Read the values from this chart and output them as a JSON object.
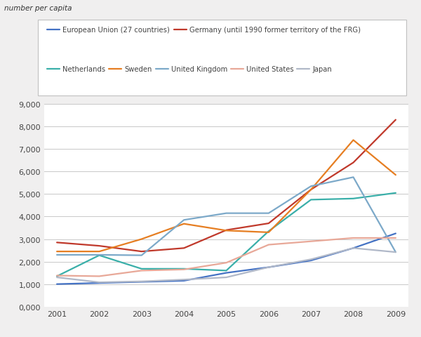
{
  "years": [
    2001,
    2002,
    2003,
    2004,
    2005,
    2006,
    2007,
    2008,
    2009
  ],
  "series": [
    {
      "name": "European Union (27 countries)",
      "values": [
        1000,
        1050,
        1100,
        1150,
        1500,
        1750,
        2050,
        2600,
        3250
      ],
      "color": "#4472C4"
    },
    {
      "name": "Germany (until 1990 former territory of the FRG)",
      "values": [
        2850,
        2700,
        2450,
        2600,
        3400,
        3700,
        5200,
        6400,
        8300
      ],
      "color": "#C0392B"
    },
    {
      "name": "Netherlands",
      "values": [
        1350,
        2280,
        1680,
        1680,
        1600,
        3350,
        4750,
        4800,
        5050
      ],
      "color": "#3AAFA9"
    },
    {
      "name": "Sweden",
      "values": [
        2450,
        2450,
        3000,
        3680,
        3380,
        3300,
        5200,
        7400,
        5850
      ],
      "color": "#E67E22"
    },
    {
      "name": "United Kingdom",
      "values": [
        2300,
        2300,
        2280,
        3850,
        4150,
        4150,
        5350,
        5750,
        2420
      ],
      "color": "#7CA9C9"
    },
    {
      "name": "United States",
      "values": [
        1380,
        1350,
        1600,
        1650,
        1950,
        2750,
        2900,
        3050,
        3050
      ],
      "color": "#E8A898"
    },
    {
      "name": "Japan",
      "values": [
        1300,
        1080,
        1120,
        1200,
        1300,
        1750,
        2100,
        2600,
        2420
      ],
      "color": "#B0B8C8"
    }
  ],
  "ylim": [
    0,
    9000
  ],
  "yticks": [
    0,
    1000,
    2000,
    3000,
    4000,
    5000,
    6000,
    7000,
    8000,
    9000
  ],
  "fig_bg": "#F0EFEF",
  "plot_bg": "#FFFFFF",
  "chart_bg": "#FFFFFF",
  "grid_color": "#C8C8C8",
  "tick_color": "#444444",
  "lw": 1.6,
  "subtitle": "number per capita",
  "legend_row1": [
    "European Union (27 countries)",
    "Germany (until 1990 former territory of the FRG)"
  ],
  "legend_row2": [
    "Netherlands",
    "Sweden",
    "United Kingdom",
    "United States",
    "Japan"
  ]
}
